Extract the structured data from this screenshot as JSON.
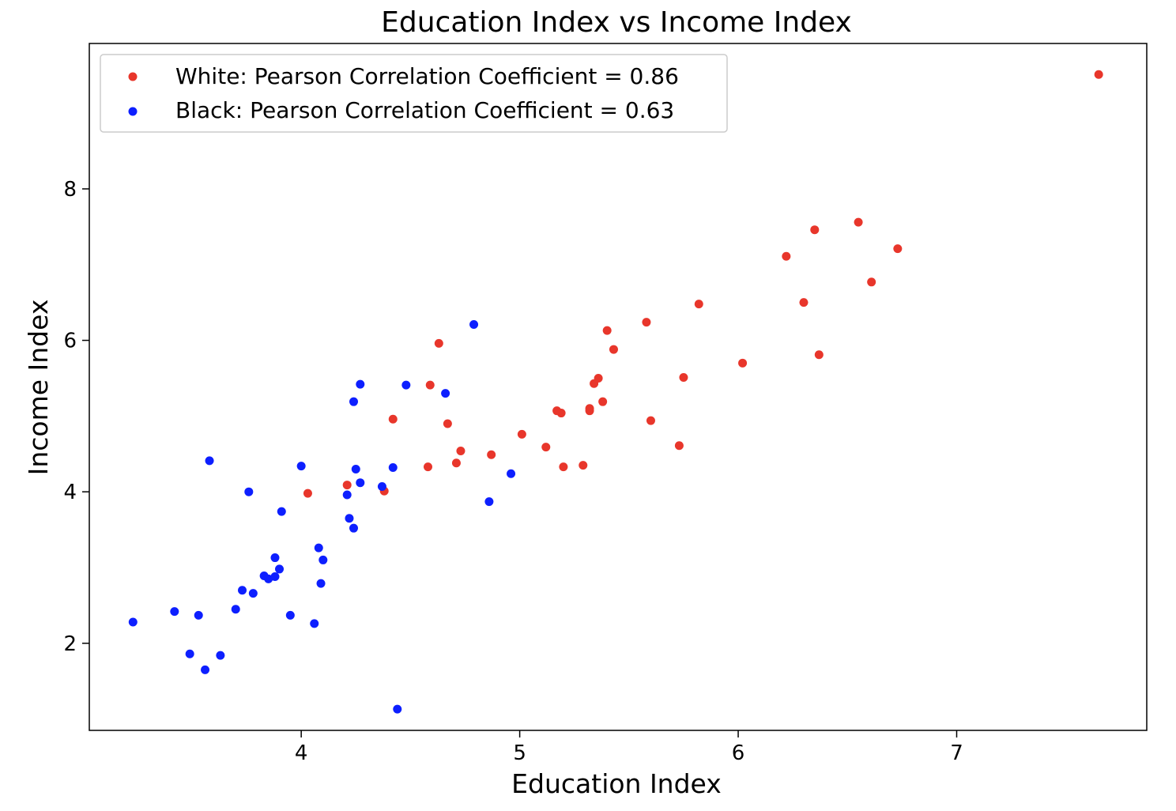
{
  "chart_data": {
    "type": "scatter",
    "title": "Education Index vs Income Index",
    "xlabel": "Education Index",
    "ylabel": "Income Index",
    "xlim": [
      3.03,
      7.87
    ],
    "ylim": [
      0.85,
      9.92
    ],
    "xticks": [
      4,
      5,
      6,
      7
    ],
    "yticks": [
      2,
      4,
      6,
      8
    ],
    "grid": false,
    "legend_position": "top-left",
    "series": [
      {
        "name": "White: Pearson Correlation Coefficient = 0.86",
        "color": "#e8362b",
        "points": [
          [
            4.03,
            3.98
          ],
          [
            4.21,
            4.09
          ],
          [
            4.38,
            4.01
          ],
          [
            4.42,
            4.96
          ],
          [
            4.58,
            4.33
          ],
          [
            4.59,
            5.41
          ],
          [
            4.63,
            5.96
          ],
          [
            4.67,
            4.9
          ],
          [
            4.71,
            4.38
          ],
          [
            4.73,
            4.54
          ],
          [
            4.87,
            4.49
          ],
          [
            5.01,
            4.76
          ],
          [
            5.12,
            4.59
          ],
          [
            5.17,
            5.07
          ],
          [
            5.19,
            5.04
          ],
          [
            5.2,
            4.33
          ],
          [
            5.29,
            4.35
          ],
          [
            5.32,
            5.1
          ],
          [
            5.32,
            5.07
          ],
          [
            5.34,
            5.43
          ],
          [
            5.36,
            5.5
          ],
          [
            5.38,
            5.19
          ],
          [
            5.4,
            6.13
          ],
          [
            5.43,
            5.88
          ],
          [
            5.58,
            6.24
          ],
          [
            5.6,
            4.94
          ],
          [
            5.73,
            4.61
          ],
          [
            5.75,
            5.51
          ],
          [
            5.82,
            6.48
          ],
          [
            6.02,
            5.7
          ],
          [
            6.22,
            7.11
          ],
          [
            6.3,
            6.5
          ],
          [
            6.35,
            7.46
          ],
          [
            6.37,
            5.81
          ],
          [
            6.55,
            7.56
          ],
          [
            6.61,
            6.77
          ],
          [
            6.73,
            7.21
          ],
          [
            7.65,
            9.51
          ]
        ]
      },
      {
        "name": "Black: Pearson Correlation Coefficient = 0.63",
        "color": "#0d1fff",
        "points": [
          [
            3.23,
            2.28
          ],
          [
            3.42,
            2.42
          ],
          [
            3.49,
            1.86
          ],
          [
            3.53,
            2.37
          ],
          [
            3.56,
            1.65
          ],
          [
            3.58,
            4.41
          ],
          [
            3.63,
            1.84
          ],
          [
            3.7,
            2.45
          ],
          [
            3.73,
            2.7
          ],
          [
            3.76,
            4.0
          ],
          [
            3.78,
            2.66
          ],
          [
            3.83,
            2.89
          ],
          [
            3.85,
            2.85
          ],
          [
            3.88,
            2.88
          ],
          [
            3.88,
            3.13
          ],
          [
            3.9,
            2.98
          ],
          [
            3.91,
            3.74
          ],
          [
            3.95,
            2.37
          ],
          [
            4.0,
            4.34
          ],
          [
            4.06,
            2.26
          ],
          [
            4.08,
            3.26
          ],
          [
            4.09,
            2.79
          ],
          [
            4.1,
            3.1
          ],
          [
            4.21,
            3.96
          ],
          [
            4.22,
            3.65
          ],
          [
            4.24,
            3.52
          ],
          [
            4.24,
            5.19
          ],
          [
            4.25,
            4.3
          ],
          [
            4.27,
            4.12
          ],
          [
            4.27,
            5.42
          ],
          [
            4.37,
            4.07
          ],
          [
            4.42,
            4.32
          ],
          [
            4.44,
            1.13
          ],
          [
            4.48,
            5.41
          ],
          [
            4.66,
            5.3
          ],
          [
            4.79,
            6.21
          ],
          [
            4.86,
            3.87
          ],
          [
            4.96,
            4.24
          ]
        ]
      }
    ]
  }
}
